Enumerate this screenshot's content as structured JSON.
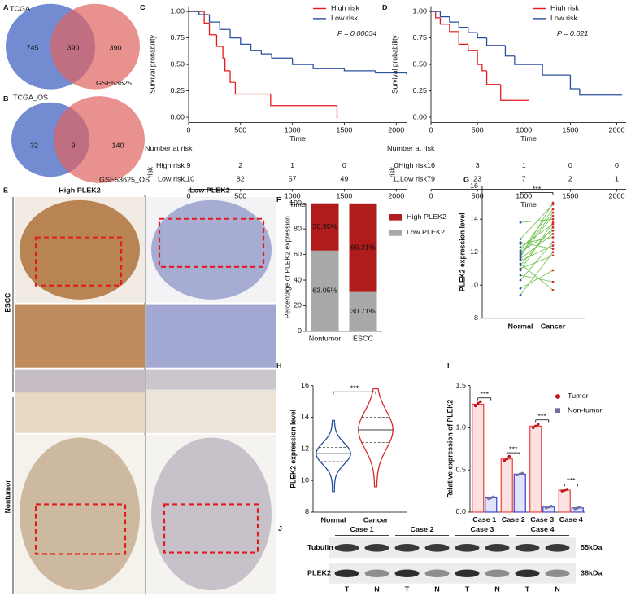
{
  "panel_labels": [
    "A",
    "B",
    "C",
    "D",
    "E",
    "F",
    "G",
    "H",
    "I",
    "J"
  ],
  "venn": [
    {
      "sets": [
        "TCGA",
        "GSE53625"
      ],
      "counts": [
        745,
        390,
        390
      ],
      "colors": [
        "#5a78c9",
        "#e0625f"
      ]
    },
    {
      "sets": [
        "TCGA_OS",
        "GSE53625_OS"
      ],
      "counts": [
        32,
        9,
        140
      ],
      "colors": [
        "#5a78c9",
        "#e0625f"
      ]
    }
  ],
  "ihc": {
    "columns": [
      "High PLEK2",
      "Low PLEK2"
    ],
    "rows": [
      "ESCC",
      "Nontumor"
    ]
  },
  "blot": {
    "cases": [
      "Case 1",
      "Case 2",
      "Case 3",
      "Case 4"
    ],
    "lanes": [
      "T",
      "N",
      "T",
      "N",
      "T",
      "N",
      "T",
      "N"
    ],
    "rows": [
      {
        "label": "Tubulin",
        "size": "55kDa"
      },
      {
        "label": "PLEK2",
        "size": "38kDa"
      }
    ]
  },
  "chart_data": [
    {
      "type": "km",
      "xlabel": "Time",
      "ylabel": "Survival probability",
      "annotation": "P = 0.00034",
      "xlim": [
        0,
        2100
      ],
      "ylim": [
        -0.05,
        1.05
      ],
      "xticks": [
        0,
        500,
        1000,
        1500,
        2000
      ],
      "yticks": [
        {
          "value": 0,
          "label": "0.00"
        },
        0.25,
        {
          "value": 0.5,
          "label": "0.50"
        },
        0.75,
        {
          "value": 1,
          "label": "1.00"
        }
      ],
      "series": [
        {
          "name": "High risk",
          "color": "#e41a1c",
          "x": [
            0,
            150,
            200,
            270,
            330,
            350,
            400,
            450,
            790,
            1430
          ],
          "values": [
            1,
            0.89,
            0.78,
            0.67,
            0.56,
            0.44,
            0.33,
            0.22,
            0.11,
            0
          ]
        },
        {
          "name": "Low risk",
          "color": "#2b4f9e",
          "x": [
            0,
            100,
            200,
            300,
            400,
            500,
            600,
            700,
            800,
            1000,
            1200,
            1500,
            1800,
            2100
          ],
          "values": [
            1,
            0.97,
            0.9,
            0.83,
            0.75,
            0.69,
            0.63,
            0.6,
            0.56,
            0.5,
            0.46,
            0.44,
            0.42,
            0.41
          ]
        }
      ],
      "risk_table": {
        "title": "Number at risk",
        "ylabel": "risk",
        "xlabel": "Time",
        "xticks": [
          0,
          500,
          1000,
          1500,
          2000
        ],
        "rows": [
          {
            "name": "High risk",
            "color": "#e41a1c",
            "values": [
              9,
              2,
              1,
              0,
              0
            ]
          },
          {
            "name": "Low risk",
            "color": "#2b4f9e",
            "values": [
              110,
              82,
              57,
              49,
              11
            ]
          }
        ]
      }
    },
    {
      "type": "km",
      "xlabel": "Time",
      "ylabel": "Survival probability",
      "annotation": "P = 0.021",
      "xlim": [
        0,
        2100
      ],
      "ylim": [
        -0.05,
        1.05
      ],
      "xticks": [
        0,
        500,
        1000,
        1500,
        2000
      ],
      "yticks": [
        {
          "value": 0,
          "label": "0.00"
        },
        0.25,
        {
          "value": 0.5,
          "label": "0.50"
        },
        0.75,
        {
          "value": 1,
          "label": "1.00"
        }
      ],
      "series": [
        {
          "name": "High risk",
          "color": "#e41a1c",
          "x": [
            0,
            50,
            100,
            200,
            300,
            400,
            500,
            550,
            600,
            750,
            1050
          ],
          "values": [
            1,
            0.94,
            0.88,
            0.81,
            0.69,
            0.63,
            0.5,
            0.44,
            0.31,
            0.16,
            0.16
          ]
        },
        {
          "name": "Low risk",
          "color": "#2b4f9e",
          "x": [
            0,
            100,
            200,
            300,
            400,
            500,
            600,
            800,
            900,
            1200,
            1500,
            1600,
            2050
          ],
          "values": [
            1,
            0.95,
            0.9,
            0.85,
            0.8,
            0.75,
            0.68,
            0.58,
            0.5,
            0.4,
            0.27,
            0.21,
            0.21
          ]
        }
      ],
      "risk_table": {
        "title": "Number at risk",
        "ylabel": "risk",
        "xlabel": "Time",
        "xticks": [
          0,
          500,
          1000,
          1500,
          2000
        ],
        "rows": [
          {
            "name": "High risk",
            "color": "#e41a1c",
            "values": [
              16,
              3,
              1,
              0,
              0
            ]
          },
          {
            "name": "Low risk",
            "color": "#2b4f9e",
            "values": [
              79,
              23,
              7,
              2,
              1
            ]
          }
        ]
      }
    },
    {
      "type": "stacked_bar",
      "ylabel": "Percentage of PLEK2 expression",
      "categories": [
        "Nontumor",
        "ESCC"
      ],
      "ylim": [
        0,
        100
      ],
      "yticks": [
        0,
        20,
        40,
        60,
        80,
        100
      ],
      "series": [
        {
          "name": "High PLEK2",
          "color": "#b01b1b",
          "values": [
            36.95,
            69.21
          ],
          "value_labels": [
            "36.95%",
            "69.21%"
          ]
        },
        {
          "name": "Low PLEK2",
          "color": "#a8a8a8",
          "values": [
            63.05,
            30.71
          ],
          "value_labels": [
            "63.05%",
            "30.71%"
          ]
        }
      ]
    },
    {
      "type": "paired",
      "ylabel": "PLEK2 expression level",
      "annotation": "***",
      "categories": [
        "Normal",
        "Cancer"
      ],
      "colors": [
        "#2b4f9e",
        "#d62728",
        "#6cc04a"
      ],
      "ylim": [
        8,
        16
      ],
      "yticks": [
        8,
        10,
        12,
        14,
        16
      ],
      "pairs": [
        [
          11.2,
          13.5
        ],
        [
          11.8,
          14.2
        ],
        [
          12.5,
          12.9
        ],
        [
          10.9,
          13.8
        ],
        [
          11.5,
          12.4
        ],
        [
          12.1,
          14.6
        ],
        [
          11.0,
          11.8
        ],
        [
          12.8,
          14.9
        ],
        [
          11.6,
          13.1
        ],
        [
          9.4,
          12.0
        ],
        [
          10.6,
          10.2
        ],
        [
          12.3,
          13.7
        ],
        [
          11.9,
          14.4
        ],
        [
          13.8,
          14.0
        ],
        [
          11.3,
          9.7
        ],
        [
          12.0,
          13.3
        ],
        [
          10.3,
          12.6
        ],
        [
          11.7,
          15.0
        ],
        [
          12.6,
          12.2
        ],
        [
          9.8,
          10.9
        ]
      ]
    },
    {
      "type": "violin",
      "ylabel": "PLEK2 expression level",
      "annotation": "***",
      "categories": [
        "Normal",
        "Cancer"
      ],
      "ylim": [
        8,
        16
      ],
      "yticks": [
        8,
        10,
        12,
        14,
        16
      ],
      "groups": [
        {
          "color": "#1f4e9c",
          "min": 9.3,
          "q1": 11.2,
          "median": 11.7,
          "q3": 12.1,
          "max": 13.8
        },
        {
          "color": "#d62728",
          "min": 9.6,
          "q1": 12.4,
          "median": 13.2,
          "q3": 14.0,
          "max": 15.8
        }
      ]
    },
    {
      "type": "bar_points",
      "ylabel": "Relative expression of PLEK2",
      "categories": [
        "Case 1",
        "Case 2",
        "Case 3",
        "Case 4"
      ],
      "significance": [
        "***",
        "***",
        "***",
        "***"
      ],
      "ylim": [
        0,
        1.5
      ],
      "yticks": [
        {
          "value": 0,
          "label": "0.0"
        },
        0.5,
        {
          "value": 1,
          "label": "1.0"
        },
        1.5
      ],
      "series": [
        {
          "name": "Tumor",
          "color": "#e8413c",
          "values": [
            1.28,
            0.63,
            1.02,
            0.26
          ],
          "points": [
            [
              1.26,
              1.29,
              1.31
            ],
            [
              0.61,
              0.63,
              0.66
            ],
            [
              1.0,
              1.02,
              1.04
            ],
            [
              0.25,
              0.26,
              0.27
            ]
          ]
        },
        {
          "name": "Non-tumor",
          "color": "#3a3fd0",
          "values": [
            0.17,
            0.45,
            0.06,
            0.05
          ],
          "points": [
            [
              0.16,
              0.17,
              0.18
            ],
            [
              0.44,
              0.45,
              0.46
            ],
            [
              0.05,
              0.06,
              0.07
            ],
            [
              0.04,
              0.05,
              0.06
            ]
          ]
        }
      ]
    }
  ]
}
